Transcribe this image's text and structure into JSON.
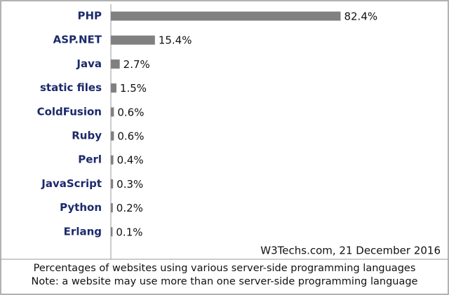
{
  "chart_data": {
    "type": "bar",
    "orientation": "horizontal",
    "categories": [
      "PHP",
      "ASP.NET",
      "Java",
      "static files",
      "ColdFusion",
      "Ruby",
      "Perl",
      "JavaScript",
      "Python",
      "Erlang"
    ],
    "values": [
      82.4,
      15.4,
      2.7,
      1.5,
      0.6,
      0.6,
      0.4,
      0.3,
      0.2,
      0.1
    ],
    "value_labels": [
      "82.4%",
      "15.4%",
      "2.7%",
      "1.5%",
      "0.6%",
      "0.6%",
      "0.4%",
      "0.3%",
      "0.2%",
      "0.1%"
    ],
    "color": "#808080",
    "source": "W3Techs.com, 21 December 2016",
    "caption": [
      "Percentages of websites using various server-side programming languages",
      "Note: a website may use more than one server-side programming language"
    ]
  }
}
